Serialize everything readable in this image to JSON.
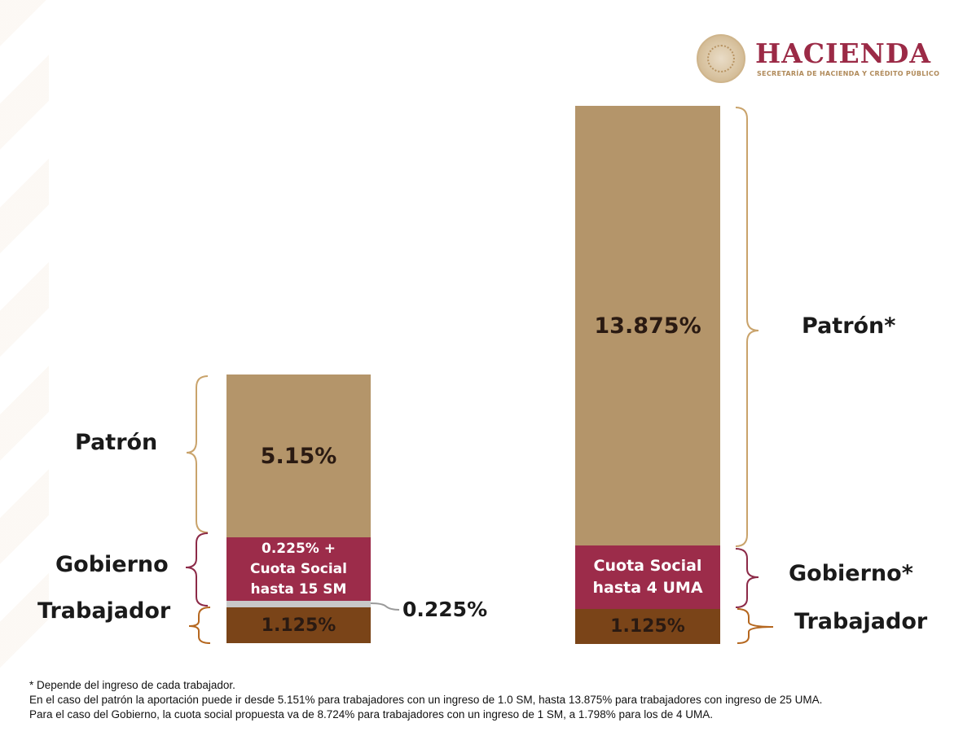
{
  "logo": {
    "title": "HACIENDA",
    "subtitle": "SECRETARÍA DE HACIENDA Y CRÉDITO PÚBLICO",
    "icon": "government-seal-icon"
  },
  "colors": {
    "patron": "#b4956a",
    "gobierno": "#9c2c4a",
    "trabajador": "#7a4418",
    "gap": "#c8c8c8",
    "brace_gold": "#c9a36b",
    "brace_maroon": "#8c2a48",
    "brace_brown": "#b5671f"
  },
  "chart_data": [
    {
      "type": "bar",
      "stacked": true,
      "segments": [
        {
          "name": "Trabajador",
          "label": "1.125%",
          "value": 1.125
        },
        {
          "name": "Gap",
          "label": "0.225%",
          "value": 0.225
        },
        {
          "name": "Gobierno",
          "label": "0.225% + Cuota Social hasta 15 SM",
          "label_lines": [
            "0.225% +",
            "Cuota Social",
            "hasta 15 SM"
          ],
          "value": 0.225
        },
        {
          "name": "Patrón",
          "label": "5.15%",
          "value": 5.15
        }
      ],
      "category_labels": {
        "patron": "Patrón",
        "gobierno": "Gobierno",
        "trabajador": "Trabajador",
        "gap": "0.225%"
      }
    },
    {
      "type": "bar",
      "stacked": true,
      "segments": [
        {
          "name": "Trabajador",
          "label": "1.125%",
          "value": 1.125
        },
        {
          "name": "Gobierno",
          "label": "Cuota Social hasta 4 UMA",
          "label_lines": [
            "Cuota Social",
            "hasta 4 UMA"
          ],
          "value": null
        },
        {
          "name": "Patrón",
          "label": "13.875%",
          "value": 13.875
        }
      ],
      "category_labels": {
        "patron": "Patrón*",
        "gobierno": "Gobierno*",
        "trabajador": "Trabajador"
      }
    }
  ],
  "footnote": {
    "line1": "* Depende del ingreso de cada trabajador.",
    "line2": "En el caso del patrón la aportación puede ir desde 5.151% para trabajadores con un ingreso de 1.0 SM, hasta 13.875% para trabajadores con ingreso de 25 UMA.",
    "line3": "Para el caso del Gobierno, la cuota social propuesta va de 8.724% para trabajadores con un ingreso de 1 SM, a 1.798% para los de 4 UMA."
  }
}
